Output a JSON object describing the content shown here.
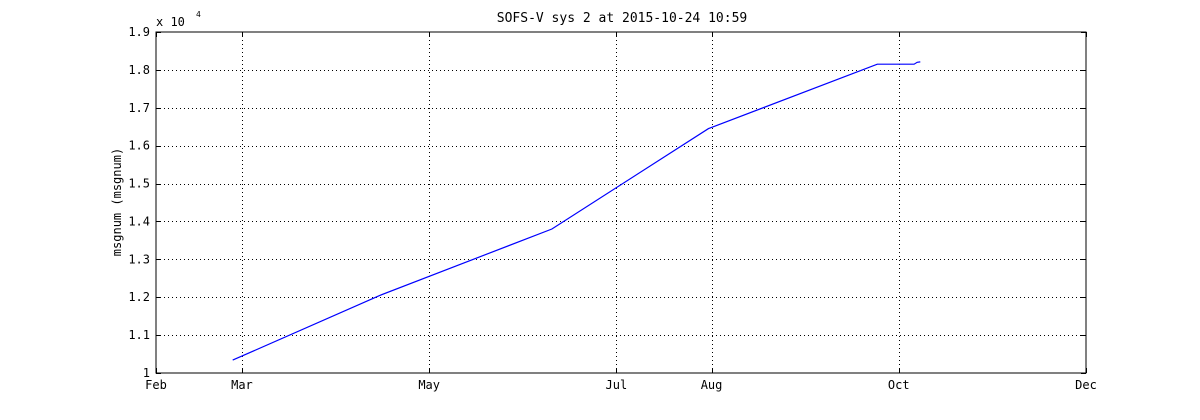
{
  "chart_data": {
    "type": "line",
    "title": "SOFS-V sys 2 at 2015-10-24 10:59",
    "xlabel": "",
    "ylabel": "msgnum (msgnum)",
    "y_multiplier_label": "x 10",
    "y_multiplier_exponent": "4",
    "xlim": [
      "2015-02-01",
      "2015-12-01"
    ],
    "ylim": [
      1.0,
      1.9
    ],
    "x_tick_labels": [
      {
        "date": "2015-02-01",
        "label": "Feb"
      },
      {
        "date": "2015-03-01",
        "label": "Mar"
      },
      {
        "date": "2015-05-01",
        "label": "May"
      },
      {
        "date": "2015-07-01",
        "label": "Jul"
      },
      {
        "date": "2015-08-01",
        "label": "Aug"
      },
      {
        "date": "2015-10-01",
        "label": "Oct"
      },
      {
        "date": "2015-12-01",
        "label": "Dec"
      }
    ],
    "y_ticks": [
      1,
      1.1,
      1.2,
      1.3,
      1.4,
      1.5,
      1.6,
      1.7,
      1.8,
      1.9
    ],
    "y_tick_labels": [
      "1",
      "1.1",
      "1.2",
      "1.3",
      "1.4",
      "1.5",
      "1.6",
      "1.7",
      "1.8",
      "1.9"
    ],
    "grid": true,
    "series": [
      {
        "color": "#0000ff",
        "points": [
          {
            "x": "2015-02-26",
            "y": 1.034
          },
          {
            "x": "2015-04-15",
            "y": 1.205
          },
          {
            "x": "2015-06-10",
            "y": 1.38
          },
          {
            "x": "2015-07-31",
            "y": 1.645
          },
          {
            "x": "2015-09-24",
            "y": 1.815
          },
          {
            "x": "2015-10-05",
            "y": 1.815
          },
          {
            "x": "2015-10-06",
            "y": 1.815
          },
          {
            "x": "2015-10-07",
            "y": 1.82
          },
          {
            "x": "2015-10-08",
            "y": 1.821
          }
        ]
      }
    ]
  }
}
